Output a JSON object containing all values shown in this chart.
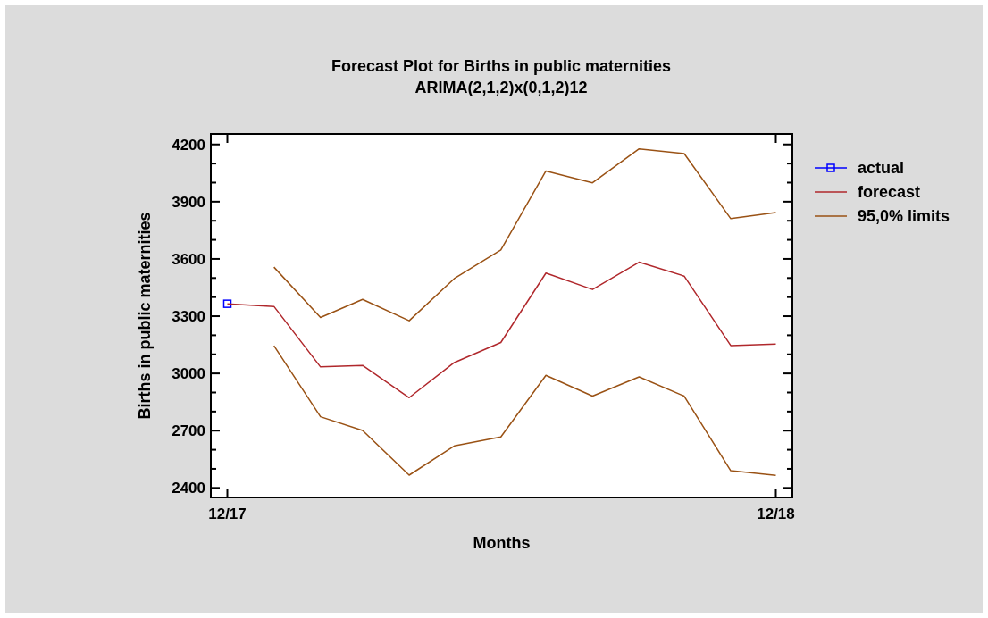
{
  "chart_data": {
    "type": "line",
    "title": "Forecast Plot for Births in public maternities",
    "subtitle": "ARIMA(2,1,2)x(0,1,2)12",
    "xlabel": "Months",
    "ylabel": "Births in public maternities",
    "x": [
      "2017-12",
      "2018-01",
      "2018-02",
      "2018-03",
      "2018-04",
      "2018-05",
      "2018-06",
      "2018-07",
      "2018-08",
      "2018-09",
      "2018-10",
      "2018-11",
      "2018-12"
    ],
    "xlim": [
      "2017-11-20",
      "2018-12-12"
    ],
    "xticks": [
      {
        "value": "2017-12",
        "label": "12/17"
      },
      {
        "value": "2018-12",
        "label": "12/18"
      }
    ],
    "ylim": [
      2350,
      4255
    ],
    "yticks": [
      2400,
      {
        "value": 2500,
        "label": null
      },
      {
        "value": 2600,
        "label": null
      },
      2700,
      {
        "value": 2800,
        "label": null
      },
      {
        "value": 2900,
        "label": null
      },
      3000,
      {
        "value": 3100,
        "label": null
      },
      {
        "value": 3200,
        "label": null
      },
      3300,
      {
        "value": 3400,
        "label": null
      },
      {
        "value": 3500,
        "label": null
      },
      3600,
      {
        "value": 3700,
        "label": null
      },
      {
        "value": 3800,
        "label": null
      },
      3900,
      {
        "value": 4000,
        "label": null
      },
      {
        "value": 4100,
        "label": null
      },
      4200
    ],
    "grid": false,
    "legend": "right",
    "series": [
      {
        "name": "actual",
        "color": "#0000ff",
        "marker": "square",
        "values": [
          3365,
          null,
          null,
          null,
          null,
          null,
          null,
          null,
          null,
          null,
          null,
          null,
          null
        ]
      },
      {
        "name": "forecast",
        "color": "#b0282c",
        "marker": "none",
        "values": [
          3365,
          3351,
          3034,
          3042,
          2873,
          3057,
          3162,
          3526,
          3440,
          3583,
          3510,
          3146,
          3154
        ]
      },
      {
        "name": "95,0% limits",
        "color": "#9a5215",
        "marker": "none",
        "values": [
          null,
          3557,
          3293,
          3388,
          3276,
          3497,
          3647,
          4061,
          3999,
          4177,
          4152,
          3811,
          3843
        ]
      },
      {
        "color": "#9a5215",
        "marker": "none",
        "values": [
          null,
          3145,
          2773,
          2701,
          2467,
          2620,
          2667,
          2990,
          2881,
          2982,
          2881,
          2490,
          2466
        ]
      }
    ]
  }
}
